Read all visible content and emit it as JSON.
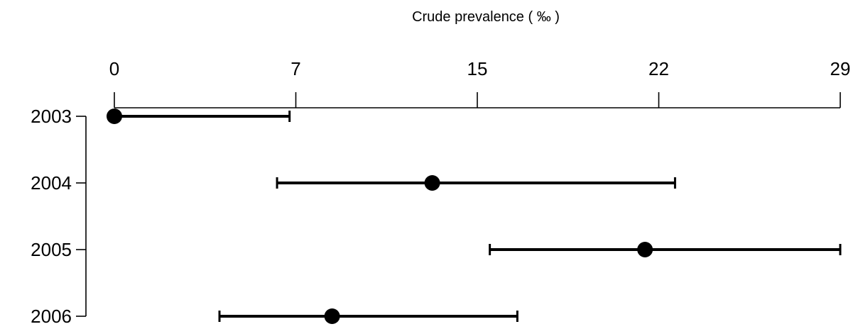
{
  "chart_data": {
    "type": "forest",
    "title": "Crude prevalence ( ‰ )",
    "xlabel": "Crude prevalence ( ‰ )",
    "ylabel": "",
    "xlim": [
      0,
      29
    ],
    "x_ticks": [
      {
        "value": 0,
        "label": "0"
      },
      {
        "value": 7.25,
        "label": "7"
      },
      {
        "value": 14.5,
        "label": "15"
      },
      {
        "value": 21.75,
        "label": "22"
      },
      {
        "value": 29,
        "label": "29"
      }
    ],
    "categories": [
      "2003",
      "2004",
      "2005",
      "2006"
    ],
    "series": [
      {
        "points": [
          {
            "year": "2003",
            "estimate": 0.0,
            "lower": 0.0,
            "upper": 7.0
          },
          {
            "year": "2004",
            "estimate": 12.7,
            "lower": 6.5,
            "upper": 22.4
          },
          {
            "year": "2005",
            "estimate": 21.2,
            "lower": 15.0,
            "upper": 29.0
          },
          {
            "year": "2006",
            "estimate": 8.7,
            "lower": 4.2,
            "upper": 16.1
          }
        ]
      }
    ],
    "colors": {
      "ink": "#000000",
      "background": "#ffffff"
    },
    "axis_position": "top",
    "grid": false,
    "legend": "none"
  }
}
